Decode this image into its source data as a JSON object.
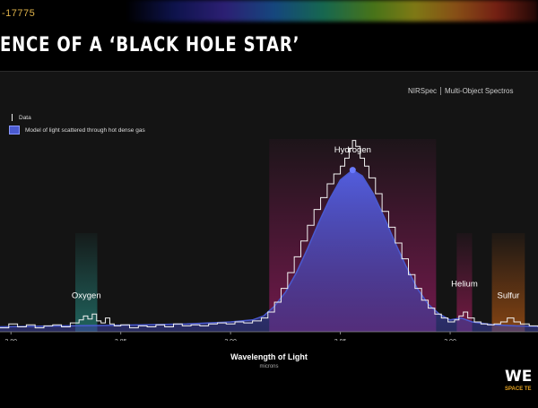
{
  "header": {
    "subtitle": "-17775",
    "title": "ENCE OF A ‘BLACK HOLE STAR’"
  },
  "instrument": {
    "name": "NIRSpec",
    "mode": "Multi-Object Spectros"
  },
  "logo": {
    "text": "WE",
    "subtext": "SPACE TE"
  },
  "chart_data": {
    "type": "line",
    "xlabel": "Wavelength of Light",
    "xunit": "microns",
    "xlim": [
      2.795,
      3.04
    ],
    "ylim": [
      0,
      1
    ],
    "x_ticks": [
      {
        "value": 2.8,
        "label": "2.80"
      },
      {
        "value": 2.85,
        "label": "2.85"
      },
      {
        "value": 2.9,
        "label": "2.90"
      },
      {
        "value": 2.95,
        "label": "2.95"
      },
      {
        "value": 3.0,
        "label": "3.00"
      }
    ],
    "legend": {
      "placement": "top-left",
      "entries": [
        {
          "label": "Data",
          "marker": "line",
          "color": "#eeeeee"
        },
        {
          "label": "Model of light scattered through hot dense gas",
          "marker": "box",
          "color": "#4a5ad0"
        }
      ]
    },
    "lines": [
      {
        "name": "Oxygen",
        "center": 2.8343,
        "half_width": 0.005,
        "color": "#2aa59a",
        "text_y": 0.17
      },
      {
        "name": "Hydrogen",
        "center": 2.9556,
        "half_width": 0.038,
        "color": "#c01e7a",
        "text_y": 0.91
      },
      {
        "name": "Helium",
        "center": 3.0065,
        "half_width": 0.0035,
        "color": "#c8206e",
        "text_y": 0.23
      },
      {
        "name": "Sulfur",
        "center": 3.0265,
        "half_width": 0.0075,
        "color": "#e06a12",
        "text_y": 0.17
      }
    ],
    "series": [
      {
        "name": "Data",
        "color": "#f2f2f2",
        "points": [
          [
            2.795,
            0.02
          ],
          [
            2.799,
            0.04
          ],
          [
            2.803,
            0.025
          ],
          [
            2.807,
            0.035
          ],
          [
            2.811,
            0.02
          ],
          [
            2.815,
            0.03
          ],
          [
            2.819,
            0.035
          ],
          [
            2.823,
            0.025
          ],
          [
            2.827,
            0.045
          ],
          [
            2.831,
            0.06
          ],
          [
            2.833,
            0.08
          ],
          [
            2.835,
            0.065
          ],
          [
            2.837,
            0.09
          ],
          [
            2.839,
            0.055
          ],
          [
            2.841,
            0.045
          ],
          [
            2.843,
            0.07
          ],
          [
            2.845,
            0.04
          ],
          [
            2.847,
            0.03
          ],
          [
            2.85,
            0.035
          ],
          [
            2.854,
            0.02
          ],
          [
            2.858,
            0.03
          ],
          [
            2.862,
            0.025
          ],
          [
            2.866,
            0.035
          ],
          [
            2.87,
            0.025
          ],
          [
            2.874,
            0.04
          ],
          [
            2.878,
            0.03
          ],
          [
            2.882,
            0.035
          ],
          [
            2.886,
            0.03
          ],
          [
            2.89,
            0.04
          ],
          [
            2.894,
            0.045
          ],
          [
            2.898,
            0.04
          ],
          [
            2.902,
            0.05
          ],
          [
            2.906,
            0.045
          ],
          [
            2.91,
            0.055
          ],
          [
            2.914,
            0.07
          ],
          [
            2.917,
            0.1
          ],
          [
            2.92,
            0.15
          ],
          [
            2.923,
            0.22
          ],
          [
            2.926,
            0.3
          ],
          [
            2.929,
            0.38
          ],
          [
            2.932,
            0.46
          ],
          [
            2.935,
            0.54
          ],
          [
            2.938,
            0.62
          ],
          [
            2.941,
            0.68
          ],
          [
            2.944,
            0.75
          ],
          [
            2.947,
            0.8
          ],
          [
            2.95,
            0.84
          ],
          [
            2.952,
            0.88
          ],
          [
            2.954,
            0.93
          ],
          [
            2.9555,
            0.97
          ],
          [
            2.957,
            0.94
          ],
          [
            2.959,
            0.88
          ],
          [
            2.961,
            0.84
          ],
          [
            2.963,
            0.78
          ],
          [
            2.966,
            0.7
          ],
          [
            2.969,
            0.61
          ],
          [
            2.972,
            0.53
          ],
          [
            2.975,
            0.45
          ],
          [
            2.978,
            0.37
          ],
          [
            2.981,
            0.29
          ],
          [
            2.984,
            0.22
          ],
          [
            2.987,
            0.16
          ],
          [
            2.99,
            0.12
          ],
          [
            2.993,
            0.09
          ],
          [
            2.996,
            0.07
          ],
          [
            2.999,
            0.05
          ],
          [
            3.002,
            0.06
          ],
          [
            3.004,
            0.08
          ],
          [
            3.006,
            0.1
          ],
          [
            3.008,
            0.07
          ],
          [
            3.011,
            0.05
          ],
          [
            3.014,
            0.04
          ],
          [
            3.017,
            0.035
          ],
          [
            3.02,
            0.04
          ],
          [
            3.023,
            0.05
          ],
          [
            3.026,
            0.07
          ],
          [
            3.029,
            0.05
          ],
          [
            3.032,
            0.04
          ],
          [
            3.036,
            0.03
          ],
          [
            3.04,
            0.025
          ]
        ]
      },
      {
        "name": "Model",
        "color": "#4a5ad0",
        "points": [
          [
            2.795,
            0.025
          ],
          [
            2.81,
            0.028
          ],
          [
            2.825,
            0.03
          ],
          [
            2.84,
            0.032
          ],
          [
            2.86,
            0.035
          ],
          [
            2.88,
            0.04
          ],
          [
            2.9,
            0.05
          ],
          [
            2.91,
            0.06
          ],
          [
            2.915,
            0.08
          ],
          [
            2.92,
            0.13
          ],
          [
            2.925,
            0.2
          ],
          [
            2.93,
            0.3
          ],
          [
            2.935,
            0.42
          ],
          [
            2.94,
            0.55
          ],
          [
            2.945,
            0.67
          ],
          [
            2.95,
            0.77
          ],
          [
            2.9556,
            0.82
          ],
          [
            2.96,
            0.79
          ],
          [
            2.965,
            0.7
          ],
          [
            2.97,
            0.58
          ],
          [
            2.975,
            0.45
          ],
          [
            2.98,
            0.33
          ],
          [
            2.985,
            0.22
          ],
          [
            2.99,
            0.14
          ],
          [
            2.995,
            0.09
          ],
          [
            3.0,
            0.06
          ],
          [
            3.005,
            0.07
          ],
          [
            3.01,
            0.05
          ],
          [
            3.02,
            0.035
          ],
          [
            3.03,
            0.03
          ],
          [
            3.04,
            0.028
          ]
        ]
      }
    ]
  }
}
